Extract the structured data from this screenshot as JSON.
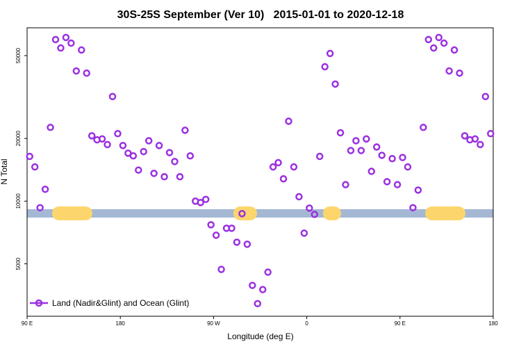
{
  "chart_data": {
    "type": "scatter",
    "title": "30S-25S September (Ver 10)   2015-01-01 to 2020-12-18",
    "x_label": "Longitude (deg E)",
    "y_label": "N Total",
    "log_y": true,
    "legend": "lower left",
    "xlim": [
      90,
      540
    ],
    "xticks": [
      {
        "value": 90,
        "label": "90 E"
      },
      180,
      {
        "value": 270,
        "label": "90 W"
      },
      {
        "value": 360,
        "label": "0"
      },
      {
        "value": 450,
        "label": "90 E"
      },
      {
        "value": 540,
        "label": "180"
      }
    ],
    "ylim": [
      2800,
      68000
    ],
    "yticks": [
      5000,
      10000,
      20000,
      50000
    ],
    "series": [
      {
        "name": "Land (Nadir&Glint) and Ocean (Glint)",
        "color": "#9b30e0",
        "x": [
          92.5,
          97.5,
          102.5,
          107.5,
          112.5,
          117.5,
          122.5,
          127.5,
          132.5,
          137.5,
          142.5,
          147.5,
          152.5,
          157.5,
          162.5,
          167.5,
          172.5,
          177.5,
          182.5,
          187.5,
          192.5,
          197.5,
          202.5,
          207.5,
          212.5,
          217.5,
          222.5,
          227.5,
          232.5,
          237.5,
          242.5,
          247.5,
          252.5,
          257.5,
          262.5,
          267.5,
          272.5,
          277.5,
          282.5,
          287.5,
          292.5,
          297.5,
          302.5,
          307.5,
          312.5,
          317.5,
          322.5,
          327.5,
          332.5,
          337.5,
          342.5,
          347.5,
          352.5,
          357.5,
          362.5,
          367.5,
          372.5,
          377.5,
          382.5,
          387.5,
          392.5,
          397.5,
          402.5,
          407.5,
          412.5,
          417.5,
          422.5,
          427.5,
          432.5,
          437.5,
          442.5,
          447.5,
          452.5,
          457.5,
          462.5,
          467.5,
          472.5,
          477.5,
          482.5,
          487.5,
          492.5,
          497.5,
          502.5,
          507.5,
          512.5,
          517.5,
          522.5,
          527.5,
          532.5,
          537.5
        ],
        "values": [
          16400,
          14600,
          9300,
          11400,
          22600,
          59700,
          54400,
          61100,
          57400,
          42200,
          53200,
          41200,
          20600,
          19700,
          19900,
          18700,
          31800,
          21100,
          18500,
          17000,
          16500,
          14100,
          17300,
          19500,
          13600,
          18500,
          13100,
          17100,
          15500,
          13100,
          21900,
          16500,
          10000,
          9850,
          10200,
          7700,
          6860,
          4700,
          7410,
          7410,
          6350,
          8710,
          6210,
          3940,
          3220,
          3760,
          4560,
          14600,
          15300,
          12800,
          24200,
          14600,
          10500,
          7020,
          9260,
          8640,
          16400,
          44200,
          51200,
          36500,
          21300,
          12000,
          17500,
          19500,
          17500,
          19900,
          13900,
          18200,
          16600,
          12400,
          16000,
          12000,
          16200,
          14600,
          9300,
          11300,
          22600,
          59700,
          54400,
          61100,
          57400,
          42200,
          53200,
          41200,
          20600,
          19700,
          19900,
          18700,
          31800,
          21100
        ]
      }
    ]
  }
}
